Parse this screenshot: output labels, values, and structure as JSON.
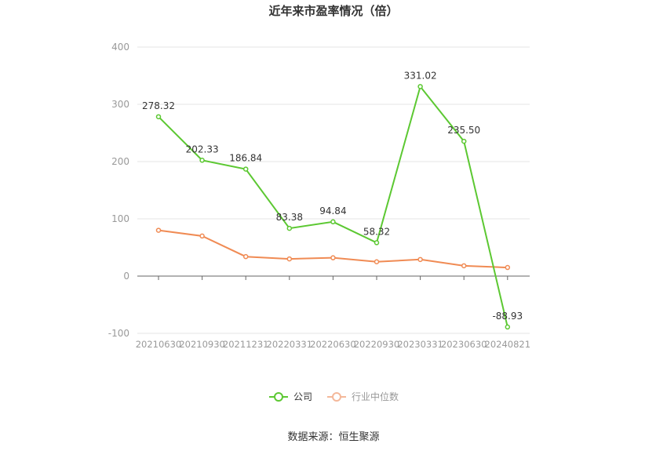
{
  "chart_data": {
    "type": "line",
    "title": "近年来市盈率情况（倍）",
    "categories": [
      "20210630",
      "20210930",
      "20211231",
      "20220331",
      "20220630",
      "20220930",
      "20230331",
      "20230630",
      "20240821"
    ],
    "yticks": [
      -100,
      0,
      100,
      200,
      300,
      400
    ],
    "ylim": [
      -100,
      400
    ],
    "grid": true,
    "legend_position": "bottom",
    "series": [
      {
        "name": "公司",
        "color": "#5cc832",
        "values": [
          278.32,
          202.33,
          186.84,
          83.38,
          94.84,
          58.32,
          331.02,
          235.5,
          -88.93
        ],
        "labels": [
          "278.32",
          "202.33",
          "186.84",
          "83.38",
          "94.84",
          "58.32",
          "331.02",
          "235.50",
          "-88.93"
        ]
      },
      {
        "name": "行业中位数",
        "color": "#f08b54",
        "values": [
          80,
          70,
          34,
          30,
          32,
          25,
          29,
          18,
          15
        ]
      }
    ]
  },
  "source": "数据来源：恒生聚源",
  "colors": {
    "axis_text": "#999999",
    "grid": "#e6e6e6",
    "axis_line": "#666666",
    "label": "#333333"
  }
}
